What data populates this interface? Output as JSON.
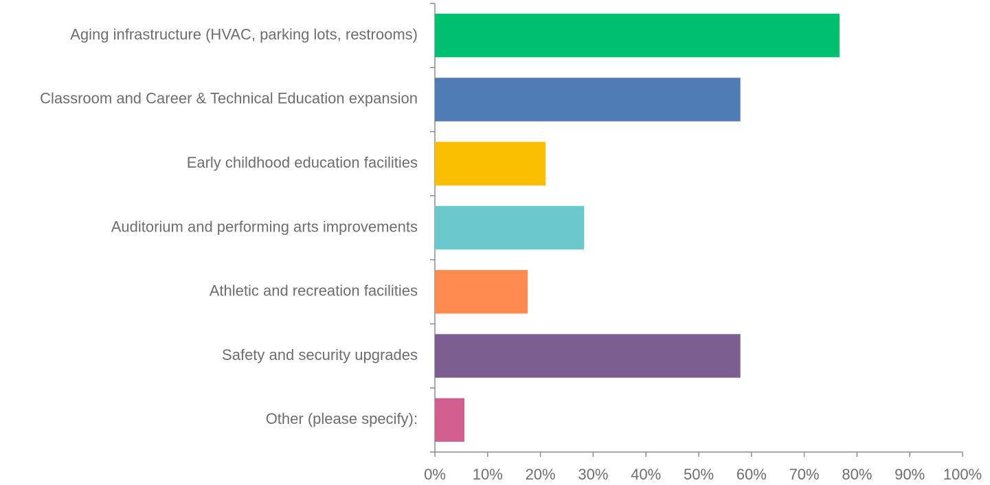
{
  "chart_data": {
    "type": "hbar",
    "categories": [
      "Aging infrastructure (HVAC, parking lots, restrooms)",
      "Classroom and Career & Technical Education expansion",
      "Early childhood education facilities",
      "Auditorium and performing arts improvements",
      "Athletic and recreation facilities",
      "Safety and security upgrades",
      "Other (please specify):"
    ],
    "values": [
      76.7,
      57.9,
      21.0,
      28.3,
      17.6,
      57.9,
      5.6
    ],
    "colors": [
      "#00bf6f",
      "#507cb6",
      "#f9be00",
      "#6bc8cd",
      "#ff8b4f",
      "#7d5e90",
      "#d25f90"
    ],
    "xlim": [
      0,
      100
    ],
    "xticks": [
      {
        "value": 0,
        "label": "0%"
      },
      {
        "value": 10,
        "label": "10%"
      },
      {
        "value": 20,
        "label": "20%"
      },
      {
        "value": 30,
        "label": "30%"
      },
      {
        "value": 40,
        "label": "40%"
      },
      {
        "value": 50,
        "label": "50%"
      },
      {
        "value": 60,
        "label": "60%"
      },
      {
        "value": 70,
        "label": "70%"
      },
      {
        "value": 80,
        "label": "80%"
      },
      {
        "value": 90,
        "label": "90%"
      },
      {
        "value": 100,
        "label": "100%"
      }
    ]
  }
}
